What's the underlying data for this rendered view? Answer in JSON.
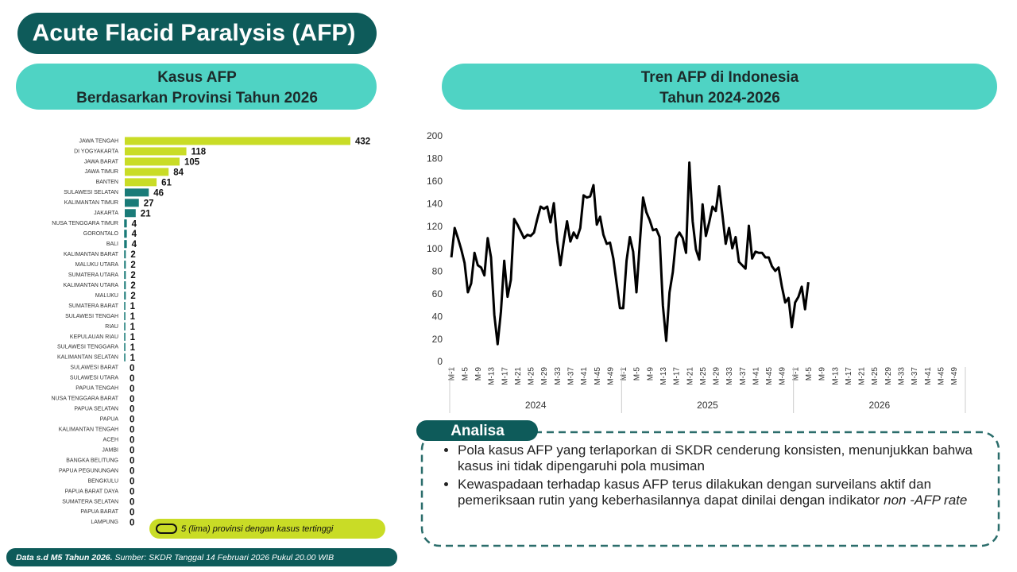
{
  "header": {
    "title": "Acute Flacid Paralysis (AFP)"
  },
  "chart_data": [
    {
      "type": "bar",
      "orientation": "horizontal",
      "title": "Kasus AFP",
      "subtitle": "Berdasarkan Provinsi Tahun 2026",
      "categories": [
        "JAWA TENGAH",
        "DI YOGYAKARTA",
        "JAWA BARAT",
        "JAWA TIMUR",
        "BANTEN",
        "SULAWESI SELATAN",
        "KALIMANTAN TIMUR",
        "JAKARTA",
        "NUSA TENGGARA TIMUR",
        "GORONTALO",
        "BALI",
        "KALIMANTAN BARAT",
        "MALUKU UTARA",
        "SUMATERA UTARA",
        "KALIMANTAN UTARA",
        "MALUKU",
        "SUMATERA BARAT",
        "SULAWESI TENGAH",
        "RIAU",
        "KEPULAUAN RIAU",
        "SULAWESI TENGGARA",
        "KALIMANTAN SELATAN",
        "SULAWESI BARAT",
        "SULAWESI UTARA",
        "PAPUA TENGAH",
        "NUSA TENGGARA BARAT",
        "PAPUA SELATAN",
        "PAPUA",
        "KALIMANTAN TENGAH",
        "ACEH",
        "JAMBI",
        "BANGKA BELITUNG",
        "PAPUA PEGUNUNGAN",
        "BENGKULU",
        "PAPUA BARAT DAYA",
        "SUMATERA SELATAN",
        "PAPUA BARAT",
        "LAMPUNG"
      ],
      "values": [
        432,
        118,
        105,
        84,
        61,
        46,
        27,
        21,
        4,
        4,
        4,
        2,
        2,
        2,
        2,
        2,
        1,
        1,
        1,
        1,
        1,
        1,
        0,
        0,
        0,
        0,
        0,
        0,
        0,
        0,
        0,
        0,
        0,
        0,
        0,
        0,
        0,
        0
      ],
      "colors": [
        "#c9dc26",
        "#c9dc26",
        "#c9dc26",
        "#c9dc26",
        "#c9dc26",
        "#1a7b78",
        "#1a7b78",
        "#1a7b78",
        "#1a7b78",
        "#1a7b78",
        "#1a7b78",
        "#1a7b78",
        "#1a7b78",
        "#1a7b78",
        "#1a7b78",
        "#1a7b78",
        "#1a7b78",
        "#1a7b78",
        "#1a7b78",
        "#1a7b78",
        "#1a7b78",
        "#1a7b78",
        "#1a7b78",
        "#1a7b78",
        "#1a7b78",
        "#1a7b78",
        "#1a7b78",
        "#1a7b78",
        "#1a7b78",
        "#1a7b78",
        "#1a7b78",
        "#1a7b78",
        "#1a7b78",
        "#1a7b78",
        "#1a7b78",
        "#1a7b78",
        "#1a7b78",
        "#1a7b78"
      ],
      "note": "5 (lima) provinsi dengan kasus tertinggi"
    },
    {
      "type": "line",
      "title": "Tren AFP di Indonesia",
      "subtitle": "Tahun 2024-2026",
      "color": "#000000",
      "categories": [
        "M-1",
        null,
        null,
        null,
        "M-5",
        null,
        null,
        null,
        "M-9",
        null,
        null,
        null,
        "M-13",
        null,
        null,
        null,
        "M-17",
        null,
        null,
        null,
        "M-21",
        null,
        null,
        null,
        "M-25",
        null,
        null,
        null,
        "M-29",
        null,
        null,
        null,
        "M-33",
        null,
        null,
        null,
        "M-37",
        null,
        null,
        null,
        "M-41",
        null,
        null,
        null,
        "M-45",
        null,
        null,
        null,
        "M-49",
        null,
        null,
        null,
        "M-1",
        null,
        null,
        null,
        "M-5",
        null,
        null,
        null,
        "M-9",
        null,
        null,
        null,
        "M-13",
        null,
        null,
        null,
        "M-17",
        null,
        null,
        null,
        "M-21",
        null,
        null,
        null,
        "M-25",
        null,
        null,
        null,
        "M-29",
        null,
        null,
        null,
        "M-33",
        null,
        null,
        null,
        "M-37",
        null,
        null,
        null,
        "M-41",
        null,
        null,
        null,
        "M-45",
        null,
        null,
        null,
        "M-49",
        null,
        null,
        null,
        "M-1",
        null,
        null,
        null,
        "M-5",
        null,
        null,
        null,
        "M-9",
        null,
        null,
        null,
        "M-13",
        null,
        null,
        null,
        "M-17",
        null,
        null,
        null,
        "M-21",
        null,
        null,
        null,
        "M-25",
        null,
        null,
        null,
        "M-29",
        null,
        null,
        null,
        "M-33",
        null,
        null,
        null,
        "M-37",
        null,
        null,
        null,
        "M-41",
        null,
        null,
        null,
        "M-45",
        null,
        null,
        null,
        "M-49",
        null,
        null,
        null
      ],
      "groups": [
        "2024",
        "2025",
        "2026"
      ],
      "values": [
        93,
        119,
        110,
        100,
        88,
        62,
        70,
        97,
        86,
        84,
        77,
        110,
        93,
        42,
        16,
        45,
        90,
        58,
        73,
        127,
        122,
        116,
        110,
        113,
        112,
        115,
        127,
        138,
        136,
        138,
        124,
        141,
        108,
        86,
        107,
        125,
        107,
        115,
        110,
        119,
        148,
        146,
        147,
        157,
        122,
        129,
        113,
        105,
        106,
        92,
        70,
        48,
        48,
        90,
        111,
        98,
        62,
        105,
        146,
        133,
        126,
        117,
        118,
        111,
        50,
        19,
        62,
        80,
        110,
        115,
        110,
        97,
        177,
        125,
        100,
        91,
        140,
        112,
        124,
        138,
        134,
        156,
        131,
        105,
        119,
        101,
        111,
        89,
        86,
        83,
        121,
        92,
        98,
        97,
        97,
        93,
        93,
        85,
        81,
        84,
        67,
        53,
        57,
        31,
        53,
        58,
        67,
        47,
        71,
        null,
        null,
        null,
        null,
        null,
        null,
        null,
        null,
        null,
        null,
        null,
        null,
        null,
        null,
        null,
        null,
        null,
        null,
        null,
        null,
        null,
        null,
        null,
        null,
        null,
        null,
        null,
        null,
        null,
        null,
        null,
        null,
        null,
        null,
        null,
        null,
        null,
        null,
        null,
        null,
        null,
        null,
        null,
        null,
        null,
        null,
        null
      ],
      "ylim": [
        0,
        200
      ],
      "yticks": [
        0,
        20,
        40,
        60,
        80,
        100,
        120,
        140,
        160,
        180,
        200
      ],
      "grid": false
    }
  ],
  "analysis": {
    "label": "Analisa",
    "bullets": [
      "Pola kasus AFP yang terlaporkan di SKDR cenderung konsisten, menunjukkan bahwa kasus ini tidak dipengaruhi pola musiman",
      "Kewaspadaan terhadap kasus AFP terus dilakukan dengan surveilans aktif dan pemeriksaan rutin yang keberhasilannya dapat dinilai dengan indikator"
    ],
    "italic": "non -AFP rate"
  },
  "footer": {
    "bold": "Data s.d M5 Tahun 2026.",
    "source": "Sumber: SKDR Tanggal 14 Februari 2026 Pukul 20.00 WIB"
  }
}
